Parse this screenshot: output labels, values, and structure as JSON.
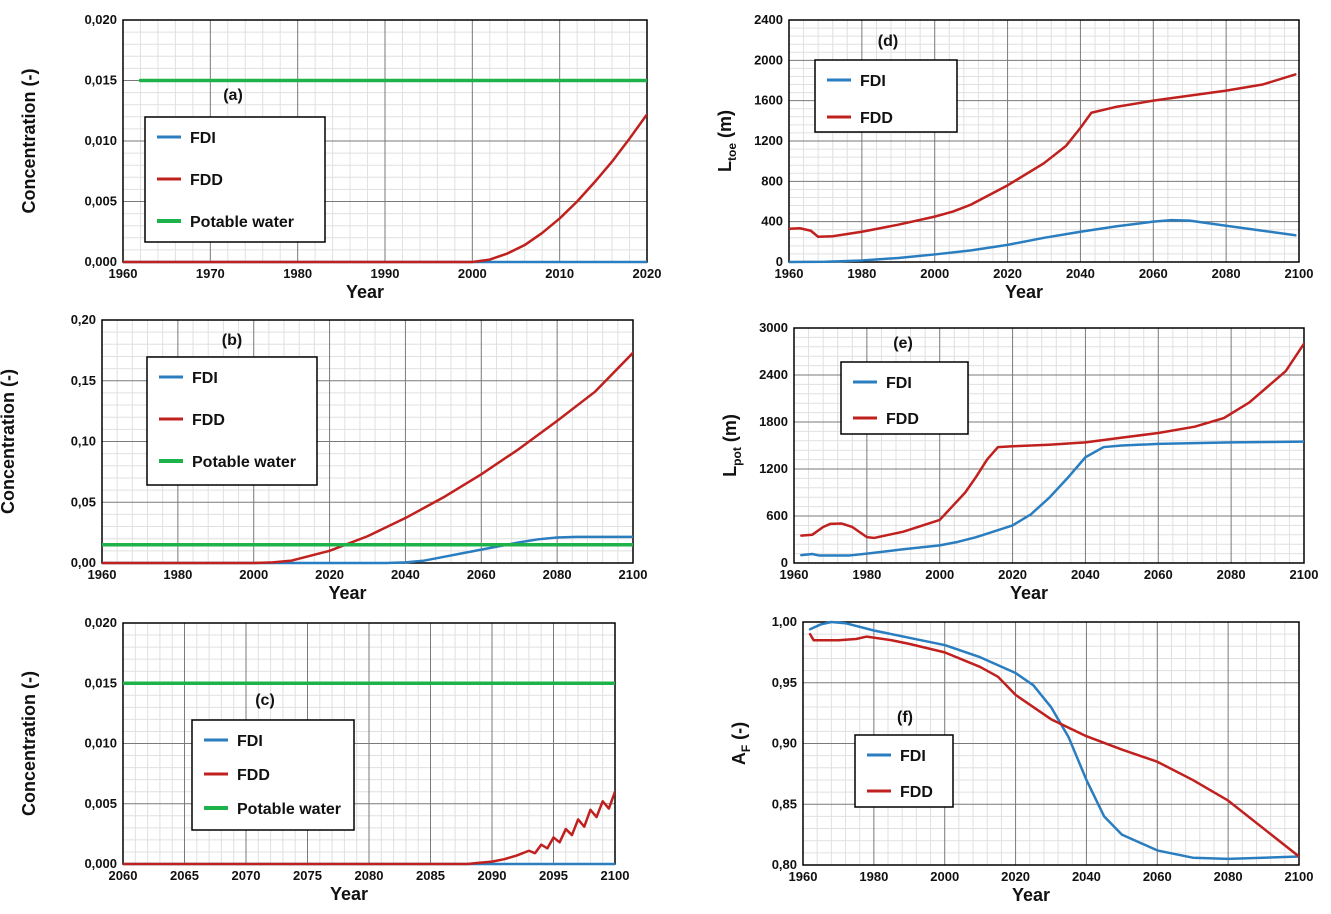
{
  "figure": {
    "colors": {
      "FDI": "#2a7ec0",
      "FDD": "#c0201e",
      "Potable water": "#1db34a",
      "grid_minor": "#e0e0e0",
      "grid_major": "#7a7a7a"
    }
  },
  "chart_data": [
    {
      "id": "a",
      "type": "line",
      "panel_label": "(a)",
      "xlabel": "Year",
      "ylabel": "Concentration (-)",
      "xlim": [
        1960,
        2020
      ],
      "ylim": [
        0,
        0.02
      ],
      "x_ticks": [
        1960,
        1970,
        1980,
        1990,
        2000,
        2010,
        2020
      ],
      "y_ticks": [
        0,
        0.005,
        0.01,
        0.015,
        0.02
      ],
      "y_tick_labels": [
        "0,000",
        "0,005",
        "0,010",
        "0,015",
        "0,020"
      ],
      "legend": [
        "FDI",
        "FDD",
        "Potable water"
      ],
      "series": [
        {
          "name": "FDI",
          "x": [
            1960,
            2020
          ],
          "y": [
            0,
            0
          ]
        },
        {
          "name": "FDD",
          "x": [
            1960,
            2000,
            2002,
            2004,
            2006,
            2008,
            2010,
            2012,
            2014,
            2016,
            2018,
            2020
          ],
          "y": [
            0,
            0,
            0.0002,
            0.0007,
            0.0014,
            0.0024,
            0.0036,
            0.005,
            0.0066,
            0.0083,
            0.0102,
            0.0122
          ]
        },
        {
          "name": "Potable water",
          "x": [
            1962,
            2020
          ],
          "y": [
            0.015,
            0.015
          ]
        }
      ]
    },
    {
      "id": "b",
      "type": "line",
      "panel_label": "(b)",
      "xlabel": "Year",
      "ylabel": "Concentration (-)",
      "xlim": [
        1960,
        2100
      ],
      "ylim": [
        0,
        0.2
      ],
      "x_ticks": [
        1960,
        1980,
        2000,
        2020,
        2040,
        2060,
        2080,
        2100
      ],
      "y_ticks": [
        0,
        0.05,
        0.1,
        0.15,
        0.2
      ],
      "y_tick_labels": [
        "0,00",
        "0,05",
        "0,10",
        "0,15",
        "0,20"
      ],
      "legend": [
        "FDI",
        "FDD",
        "Potable water"
      ],
      "series": [
        {
          "name": "FDI",
          "x": [
            1960,
            2035,
            2040,
            2045,
            2050,
            2055,
            2060,
            2065,
            2070,
            2075,
            2080,
            2085,
            2090,
            2100
          ],
          "y": [
            0,
            0,
            0.0005,
            0.002,
            0.005,
            0.008,
            0.011,
            0.014,
            0.017,
            0.0195,
            0.021,
            0.0215,
            0.0215,
            0.0215
          ]
        },
        {
          "name": "FDD",
          "x": [
            1960,
            2000,
            2005,
            2010,
            2020,
            2030,
            2040,
            2050,
            2060,
            2070,
            2080,
            2090,
            2100
          ],
          "y": [
            0,
            0,
            0.0005,
            0.002,
            0.01,
            0.022,
            0.037,
            0.054,
            0.073,
            0.094,
            0.117,
            0.141,
            0.173
          ]
        },
        {
          "name": "Potable water",
          "x": [
            1960,
            2100
          ],
          "y": [
            0.015,
            0.015
          ]
        }
      ]
    },
    {
      "id": "c",
      "type": "line",
      "panel_label": "(c)",
      "xlabel": "Year",
      "ylabel": "Concentration (-)",
      "xlim": [
        2060,
        2100
      ],
      "ylim": [
        0,
        0.02
      ],
      "x_ticks": [
        2060,
        2065,
        2070,
        2075,
        2080,
        2085,
        2090,
        2095,
        2100
      ],
      "y_ticks": [
        0,
        0.005,
        0.01,
        0.015,
        0.02
      ],
      "y_tick_labels": [
        "0,000",
        "0,005",
        "0,010",
        "0,015",
        "0,020"
      ],
      "legend": [
        "FDI",
        "FDD",
        "Potable water"
      ],
      "series": [
        {
          "name": "FDI",
          "x": [
            2060,
            2100
          ],
          "y": [
            0,
            0
          ]
        },
        {
          "name": "FDD",
          "x": [
            2060,
            2088,
            2089,
            2090,
            2091,
            2092,
            2093,
            2093.5,
            2094,
            2094.5,
            2095,
            2095.5,
            2096,
            2096.5,
            2097,
            2097.5,
            2098,
            2098.5,
            2099,
            2099.5,
            2100
          ],
          "y": [
            0,
            0,
            0.0001,
            0.0002,
            0.0004,
            0.0007,
            0.0011,
            0.0009,
            0.0016,
            0.0013,
            0.0022,
            0.0018,
            0.0029,
            0.0024,
            0.0037,
            0.0031,
            0.0045,
            0.0039,
            0.0052,
            0.0046,
            0.006
          ]
        },
        {
          "name": "Potable water",
          "x": [
            2060,
            2100
          ],
          "y": [
            0.015,
            0.015
          ]
        }
      ]
    },
    {
      "id": "d",
      "type": "line",
      "panel_label": "(d)",
      "xlabel": "Year",
      "ylabel_main": "L",
      "ylabel_sub": "toe",
      "ylabel_unit": " (m)",
      "xlim": [
        1960,
        2100
      ],
      "ylim": [
        0,
        2400
      ],
      "x_ticks": [
        1960,
        1980,
        2000,
        2020,
        2040,
        2060,
        2080,
        2100
      ],
      "y_ticks": [
        0,
        400,
        800,
        1200,
        1600,
        2000,
        2400
      ],
      "y_tick_labels": [
        "0",
        "400",
        "800",
        "1200",
        "1600",
        "2000",
        "2400"
      ],
      "legend": [
        "FDI",
        "FDD"
      ],
      "series": [
        {
          "name": "FDI",
          "x": [
            1960,
            1970,
            1980,
            1990,
            2000,
            2010,
            2020,
            2030,
            2040,
            2050,
            2060,
            2065,
            2070,
            2080,
            2090,
            2099
          ],
          "y": [
            0,
            2,
            15,
            40,
            75,
            115,
            170,
            240,
            300,
            355,
            400,
            415,
            410,
            360,
            310,
            265
          ]
        },
        {
          "name": "FDD",
          "x": [
            1960,
            1963,
            1966,
            1968,
            1972,
            1980,
            1990,
            2000,
            2005,
            2010,
            2020,
            2030,
            2036,
            2040,
            2043,
            2050,
            2060,
            2070,
            2080,
            2090,
            2099
          ],
          "y": [
            330,
            335,
            310,
            250,
            255,
            300,
            370,
            450,
            500,
            570,
            760,
            980,
            1150,
            1330,
            1480,
            1540,
            1600,
            1650,
            1700,
            1760,
            1860
          ]
        }
      ]
    },
    {
      "id": "e",
      "type": "line",
      "panel_label": "(e)",
      "xlabel": "Year",
      "ylabel_main": "L",
      "ylabel_sub": "pot",
      "ylabel_unit": " (m)",
      "xlim": [
        1960,
        2100
      ],
      "ylim": [
        0,
        3000
      ],
      "x_ticks": [
        1960,
        1980,
        2000,
        2020,
        2040,
        2060,
        2080,
        2100
      ],
      "y_ticks": [
        0,
        600,
        1200,
        1800,
        2400,
        3000
      ],
      "y_tick_labels": [
        "0",
        "600",
        "1200",
        "1800",
        "2400",
        "3000"
      ],
      "legend": [
        "FDI",
        "FDD"
      ],
      "series": [
        {
          "name": "FDI",
          "x": [
            1962,
            1965,
            1967,
            1970,
            1975,
            1980,
            1990,
            2000,
            2005,
            2010,
            2020,
            2025,
            2030,
            2035,
            2040,
            2045,
            2050,
            2060,
            2070,
            2080,
            2090,
            2100
          ],
          "y": [
            100,
            115,
            95,
            95,
            95,
            120,
            175,
            225,
            270,
            330,
            480,
            620,
            830,
            1080,
            1350,
            1480,
            1500,
            1520,
            1530,
            1540,
            1545,
            1550
          ]
        },
        {
          "name": "FDD",
          "x": [
            1962,
            1965,
            1968,
            1970,
            1973,
            1976,
            1980,
            1982,
            1990,
            2000,
            2003,
            2007,
            2010,
            2013,
            2016,
            2020,
            2030,
            2040,
            2050,
            2060,
            2070,
            2078,
            2085,
            2090,
            2095,
            2100
          ],
          "y": [
            350,
            360,
            460,
            500,
            505,
            460,
            330,
            320,
            400,
            550,
            700,
            900,
            1100,
            1320,
            1480,
            1490,
            1510,
            1540,
            1600,
            1660,
            1740,
            1850,
            2050,
            2250,
            2450,
            2800
          ]
        }
      ]
    },
    {
      "id": "f",
      "type": "line",
      "panel_label": "(f)",
      "xlabel": "Year",
      "ylabel_main": "A",
      "ylabel_sub": "F",
      "ylabel_unit": " (-)",
      "xlim": [
        1960,
        2100
      ],
      "ylim": [
        0.8,
        1.0
      ],
      "x_ticks": [
        1960,
        1980,
        2000,
        2020,
        2040,
        2060,
        2080,
        2100
      ],
      "y_ticks": [
        0.8,
        0.85,
        0.9,
        0.95,
        1.0
      ],
      "y_tick_labels": [
        "0,80",
        "0,85",
        "0,90",
        "0,95",
        "1,00"
      ],
      "legend": [
        "FDI",
        "FDD"
      ],
      "series": [
        {
          "name": "FDI",
          "x": [
            1962,
            1965,
            1968,
            1972,
            1980,
            1990,
            2000,
            2010,
            2020,
            2025,
            2030,
            2035,
            2040,
            2045,
            2050,
            2060,
            2070,
            2080,
            2090,
            2100
          ],
          "y": [
            0.994,
            0.998,
            1.0,
            0.999,
            0.993,
            0.987,
            0.981,
            0.971,
            0.958,
            0.948,
            0.93,
            0.905,
            0.87,
            0.84,
            0.825,
            0.812,
            0.806,
            0.805,
            0.806,
            0.807
          ]
        },
        {
          "name": "FDD",
          "x": [
            1962,
            1963,
            1965,
            1970,
            1975,
            1978,
            1985,
            1990,
            2000,
            2010,
            2015,
            2020,
            2030,
            2040,
            2050,
            2060,
            2070,
            2080,
            2090,
            2100
          ],
          "y": [
            0.99,
            0.985,
            0.985,
            0.985,
            0.986,
            0.988,
            0.985,
            0.982,
            0.975,
            0.963,
            0.955,
            0.94,
            0.92,
            0.906,
            0.895,
            0.885,
            0.87,
            0.853,
            0.83,
            0.807
          ]
        }
      ]
    }
  ]
}
